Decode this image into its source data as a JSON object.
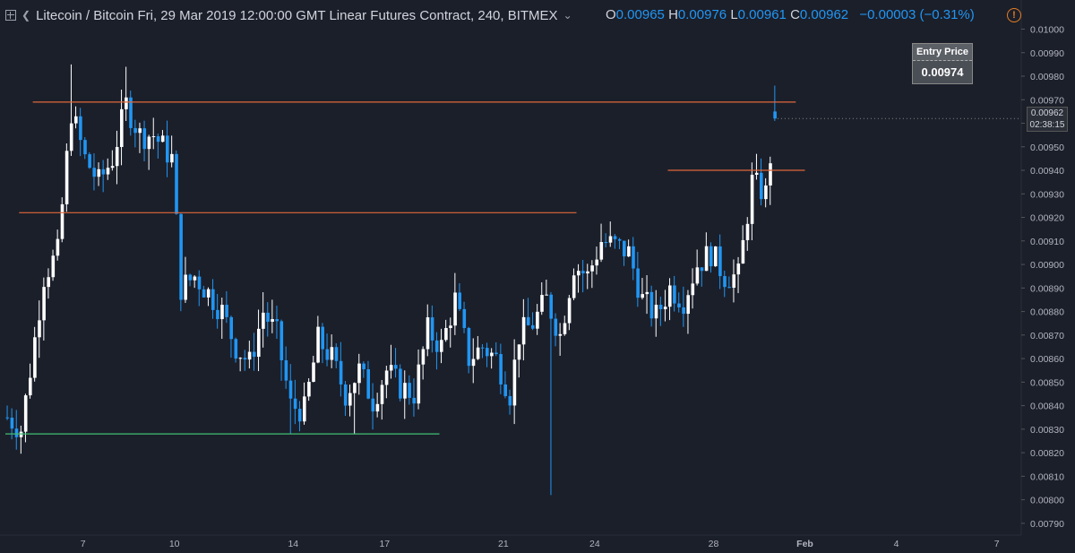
{
  "header": {
    "symbol": "Litecoin / Bitcoin Fri, 29 Mar 2019 12:00:00 GMT Linear Futures Contract, 240, BITMEX",
    "ohlc": {
      "o_label": "O",
      "o": "0.00965",
      "h_label": "H",
      "h": "0.00976",
      "l_label": "L",
      "l": "0.00961",
      "c_label": "C",
      "c": "0.00962",
      "change": "−0.00003 (−0.31%)"
    }
  },
  "entry_price": {
    "title": "Entry Price",
    "value": "0.00974"
  },
  "last_price": {
    "value": "0.00962",
    "countdown": "02:38:15"
  },
  "chart_data": {
    "type": "candlestick",
    "ylim": [
      0.00785,
      0.01004
    ],
    "y_ticks": [
      "0.01000",
      "0.00990",
      "0.00980",
      "0.00970",
      "0.00960",
      "0.00950",
      "0.00940",
      "0.00930",
      "0.00920",
      "0.00910",
      "0.00900",
      "0.00890",
      "0.00880",
      "0.00870",
      "0.00860",
      "0.00850",
      "0.00840",
      "0.00830",
      "0.00820",
      "0.00810",
      "0.00800",
      "0.00790"
    ],
    "x_ticks": [
      "7",
      "10",
      "14",
      "17",
      "21",
      "24",
      "28",
      "Feb",
      "4",
      "7"
    ],
    "x_tick_index": [
      17,
      37,
      63,
      83,
      109,
      129,
      155,
      175,
      195,
      217
    ],
    "bar_count": 158,
    "anchors": [
      [
        0,
        0.00835
      ],
      [
        3,
        0.0083
      ],
      [
        5,
        0.00855
      ],
      [
        8,
        0.00895
      ],
      [
        11,
        0.00905
      ],
      [
        14,
        0.00965
      ],
      [
        17,
        0.00945
      ],
      [
        20,
        0.00935
      ],
      [
        23,
        0.00945
      ],
      [
        26,
        0.00968
      ],
      [
        29,
        0.00955
      ],
      [
        32,
        0.00955
      ],
      [
        36,
        0.00945
      ],
      [
        38,
        0.0089
      ],
      [
        41,
        0.00895
      ],
      [
        44,
        0.00888
      ],
      [
        47,
        0.0088
      ],
      [
        50,
        0.00865
      ],
      [
        53,
        0.00858
      ],
      [
        56,
        0.0088
      ],
      [
        59,
        0.0087
      ],
      [
        62,
        0.0084
      ],
      [
        65,
        0.00838
      ],
      [
        68,
        0.00868
      ],
      [
        71,
        0.0086
      ],
      [
        74,
        0.00845
      ],
      [
        77,
        0.00855
      ],
      [
        80,
        0.00842
      ],
      [
        83,
        0.00855
      ],
      [
        86,
        0.00848
      ],
      [
        89,
        0.00845
      ],
      [
        92,
        0.00872
      ],
      [
        95,
        0.00865
      ],
      [
        98,
        0.00885
      ],
      [
        101,
        0.0086
      ],
      [
        104,
        0.00865
      ],
      [
        107,
        0.0086
      ],
      [
        110,
        0.00845
      ],
      [
        112,
        0.0087
      ],
      [
        115,
        0.00875
      ],
      [
        118,
        0.00885
      ],
      [
        121,
        0.0087
      ],
      [
        124,
        0.009
      ],
      [
        127,
        0.00895
      ],
      [
        130,
        0.0091
      ],
      [
        133,
        0.00908
      ],
      [
        136,
        0.00905
      ],
      [
        139,
        0.00885
      ],
      [
        142,
        0.00878
      ],
      [
        145,
        0.0089
      ],
      [
        148,
        0.00885
      ],
      [
        151,
        0.009
      ],
      [
        154,
        0.00905
      ],
      [
        157,
        0.00895
      ],
      [
        160,
        0.00895
      ],
      [
        163,
        0.00935
      ],
      [
        166,
        0.0093
      ],
      [
        168,
        0.00962
      ]
    ],
    "support_resistance": [
      {
        "y": 0.00969,
        "x0_index": 6,
        "x1_index": 173,
        "color": "#e0673a"
      },
      {
        "y": 0.0094,
        "x0_index": 145,
        "x1_index": 175,
        "color": "#e0673a"
      },
      {
        "y": 0.00922,
        "x0_index": 3,
        "x1_index": 125,
        "color": "#e0673a"
      },
      {
        "y": 0.00828,
        "x0_index": 0,
        "x1_index": 95,
        "color": "#3fbf73"
      }
    ]
  }
}
